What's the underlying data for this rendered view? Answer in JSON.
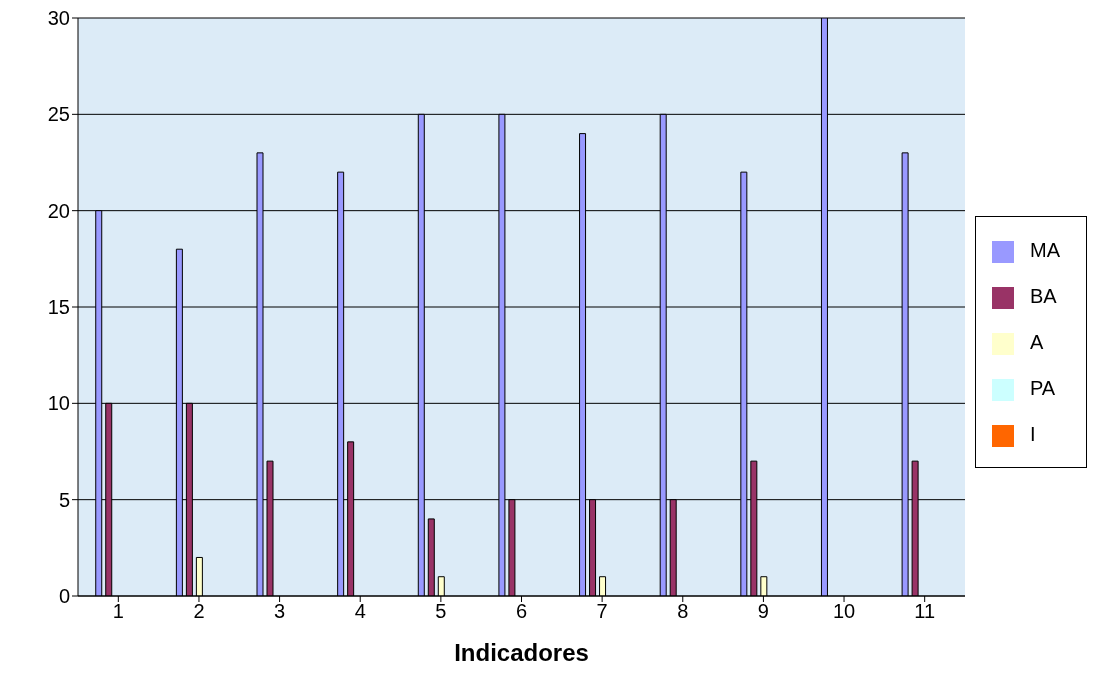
{
  "chart_data": {
    "type": "bar",
    "xlabel": "Indicadores",
    "categories": [
      "1",
      "2",
      "3",
      "4",
      "5",
      "6",
      "7",
      "8",
      "9",
      "10",
      "11"
    ],
    "series": [
      {
        "name": "MA",
        "color": "#9999ff",
        "values": [
          20,
          18,
          23,
          22,
          25,
          25,
          24,
          25,
          22,
          30,
          23
        ]
      },
      {
        "name": "BA",
        "color": "#993366",
        "values": [
          10,
          10,
          7,
          8,
          4,
          5,
          5,
          5,
          7,
          0,
          7
        ]
      },
      {
        "name": "A",
        "color": "#ffffcc",
        "values": [
          0,
          2,
          0,
          0,
          1,
          0,
          1,
          0,
          1,
          0,
          0
        ]
      },
      {
        "name": "PA",
        "color": "#ccffff",
        "values": [
          0,
          0,
          0,
          0,
          0,
          0,
          0,
          0,
          0,
          0,
          0
        ]
      },
      {
        "name": "I",
        "color": "#ff6600",
        "values": [
          0,
          0,
          0,
          0,
          0,
          0,
          0,
          0,
          0,
          0,
          0
        ]
      }
    ],
    "ylim": [
      0,
      30
    ],
    "yticks": [
      0,
      5,
      10,
      15,
      20,
      25,
      30
    ],
    "grid": "y",
    "legend": "right"
  }
}
